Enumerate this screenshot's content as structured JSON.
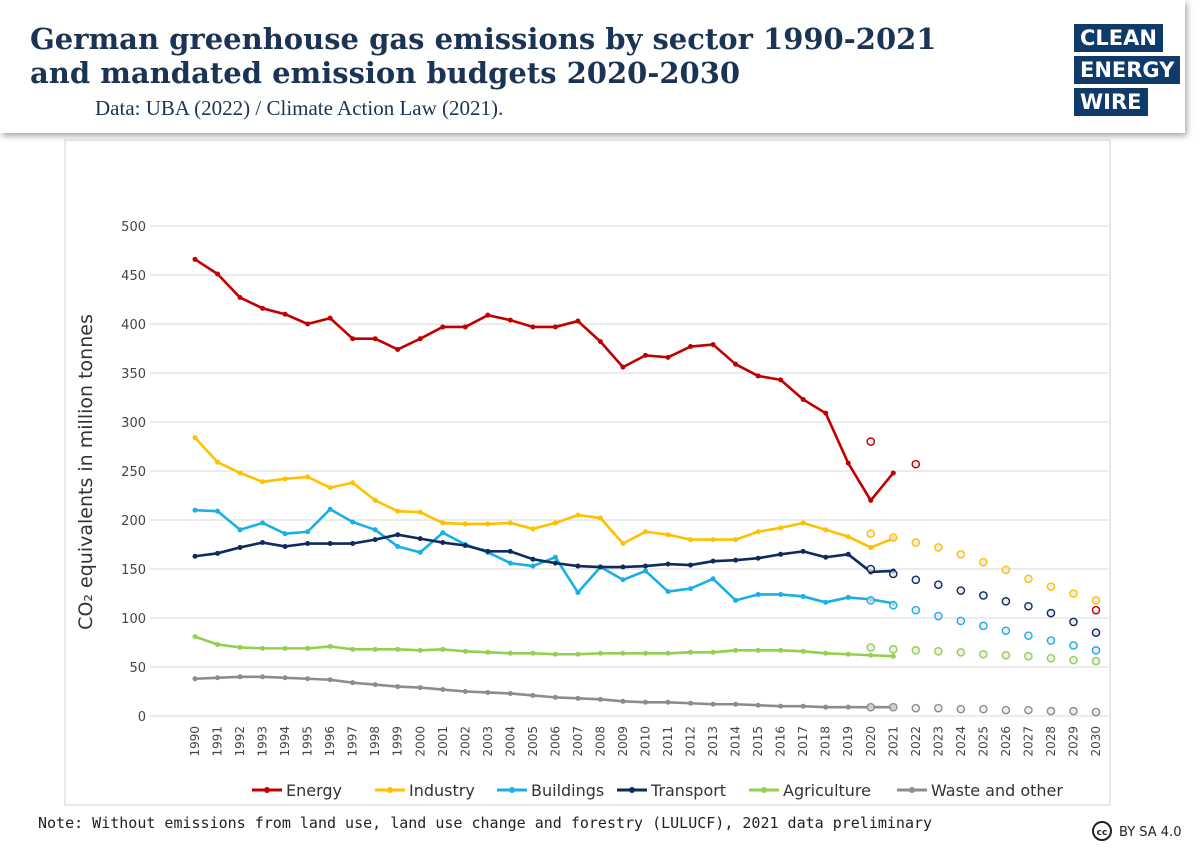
{
  "chart_data": {
    "type": "line",
    "title": "German greenhouse gas emissions by sector 1990-2021 and mandated emission budgets 2020-2030",
    "subtitle": "Data: UBA (2022) / Climate Action Law (2021).",
    "y_label": "CO₂ equivalents in million tonnes",
    "note": "Note: Without emissions from land use, land use change and forestry (LULUCF), 2021 data preliminary",
    "categories": [
      "1990",
      "1991",
      "1992",
      "1993",
      "1994",
      "1995",
      "1996",
      "1997",
      "1998",
      "1999",
      "2000",
      "2001",
      "2002",
      "2003",
      "2004",
      "2005",
      "2006",
      "2007",
      "2008",
      "2009",
      "2010",
      "2011",
      "2012",
      "2013",
      "2014",
      "2015",
      "2016",
      "2017",
      "2018",
      "2019",
      "2020",
      "2021",
      "2022",
      "2023",
      "2024",
      "2025",
      "2026",
      "2027",
      "2028",
      "2029",
      "2030"
    ],
    "ylim": [
      0,
      500
    ],
    "yticks": [
      0,
      50,
      100,
      150,
      200,
      250,
      300,
      350,
      400,
      450,
      500
    ],
    "grid": true,
    "legend": "bottom",
    "series": [
      {
        "name": "Energy",
        "color": "#c00000",
        "values": [
          466,
          451,
          427,
          416,
          410,
          400,
          406,
          385,
          385,
          374,
          385,
          397,
          397,
          409,
          404,
          397,
          397,
          403,
          382,
          356,
          368,
          366,
          377,
          379,
          359,
          347,
          343,
          323,
          309,
          258,
          220,
          248,
          null,
          null,
          null,
          null,
          null,
          null,
          null,
          null,
          null
        ],
        "budget": [
          null,
          null,
          null,
          null,
          null,
          null,
          null,
          null,
          null,
          null,
          null,
          null,
          null,
          null,
          null,
          null,
          null,
          null,
          null,
          null,
          null,
          null,
          null,
          null,
          null,
          null,
          null,
          null,
          null,
          null,
          280,
          null,
          257,
          null,
          null,
          null,
          null,
          null,
          null,
          null,
          108
        ]
      },
      {
        "name": "Industry",
        "color": "#ffc000",
        "values": [
          284,
          259,
          248,
          239,
          242,
          244,
          233,
          238,
          220,
          209,
          208,
          197,
          196,
          196,
          197,
          191,
          197,
          205,
          202,
          176,
          188,
          185,
          180,
          180,
          180,
          188,
          192,
          197,
          190,
          183,
          172,
          181,
          null,
          null,
          null,
          null,
          null,
          null,
          null,
          null,
          null
        ],
        "budget": [
          null,
          null,
          null,
          null,
          null,
          null,
          null,
          null,
          null,
          null,
          null,
          null,
          null,
          null,
          null,
          null,
          null,
          null,
          null,
          null,
          null,
          null,
          null,
          null,
          null,
          null,
          null,
          null,
          null,
          null,
          186,
          182,
          177,
          172,
          165,
          157,
          149,
          140,
          132,
          125,
          118
        ]
      },
      {
        "name": "Buildings",
        "color": "#1aafe6",
        "values": [
          210,
          209,
          190,
          197,
          186,
          188,
          211,
          198,
          190,
          173,
          167,
          187,
          175,
          167,
          156,
          153,
          162,
          126,
          152,
          139,
          148,
          127,
          130,
          140,
          118,
          124,
          124,
          122,
          116,
          121,
          119,
          115,
          null,
          null,
          null,
          null,
          null,
          null,
          null,
          null,
          null
        ],
        "budget": [
          null,
          null,
          null,
          null,
          null,
          null,
          null,
          null,
          null,
          null,
          null,
          null,
          null,
          null,
          null,
          null,
          null,
          null,
          null,
          null,
          null,
          null,
          null,
          null,
          null,
          null,
          null,
          null,
          null,
          null,
          118,
          113,
          108,
          102,
          97,
          92,
          87,
          82,
          77,
          72,
          67
        ]
      },
      {
        "name": "Transport",
        "color": "#0d2b5c",
        "values": [
          163,
          166,
          172,
          177,
          173,
          176,
          176,
          176,
          180,
          185,
          181,
          177,
          174,
          168,
          168,
          160,
          156,
          153,
          152,
          152,
          153,
          155,
          154,
          158,
          159,
          161,
          165,
          168,
          162,
          165,
          147,
          148,
          null,
          null,
          null,
          null,
          null,
          null,
          null,
          null,
          null
        ],
        "budget": [
          null,
          null,
          null,
          null,
          null,
          null,
          null,
          null,
          null,
          null,
          null,
          null,
          null,
          null,
          null,
          null,
          null,
          null,
          null,
          null,
          null,
          null,
          null,
          null,
          null,
          null,
          null,
          null,
          null,
          null,
          150,
          145,
          139,
          134,
          128,
          123,
          117,
          112,
          105,
          96,
          85
        ]
      },
      {
        "name": "Agriculture",
        "color": "#92d050",
        "values": [
          81,
          73,
          70,
          69,
          69,
          69,
          71,
          68,
          68,
          68,
          67,
          68,
          66,
          65,
          64,
          64,
          63,
          63,
          64,
          64,
          64,
          64,
          65,
          65,
          67,
          67,
          67,
          66,
          64,
          63,
          62,
          61,
          null,
          null,
          null,
          null,
          null,
          null,
          null,
          null,
          null
        ],
        "budget": [
          null,
          null,
          null,
          null,
          null,
          null,
          null,
          null,
          null,
          null,
          null,
          null,
          null,
          null,
          null,
          null,
          null,
          null,
          null,
          null,
          null,
          null,
          null,
          null,
          null,
          null,
          null,
          null,
          null,
          null,
          70,
          68,
          67,
          66,
          65,
          63,
          62,
          61,
          59,
          57,
          56
        ]
      },
      {
        "name": "Waste and other",
        "color": "#8c8c8c",
        "values": [
          38,
          39,
          40,
          40,
          39,
          38,
          37,
          34,
          32,
          30,
          29,
          27,
          25,
          24,
          23,
          21,
          19,
          18,
          17,
          15,
          14,
          14,
          13,
          12,
          12,
          11,
          10,
          10,
          9,
          9,
          9,
          9,
          null,
          null,
          null,
          null,
          null,
          null,
          null,
          null,
          null
        ],
        "budget": [
          null,
          null,
          null,
          null,
          null,
          null,
          null,
          null,
          null,
          null,
          null,
          null,
          null,
          null,
          null,
          null,
          null,
          null,
          null,
          null,
          null,
          null,
          null,
          null,
          null,
          null,
          null,
          null,
          null,
          null,
          9,
          9,
          8,
          8,
          7,
          7,
          6,
          6,
          5,
          5,
          4
        ]
      }
    ]
  },
  "logo": [
    "CLEAN",
    "ENERGY",
    "WIRE"
  ],
  "license": "BY SA 4.0"
}
